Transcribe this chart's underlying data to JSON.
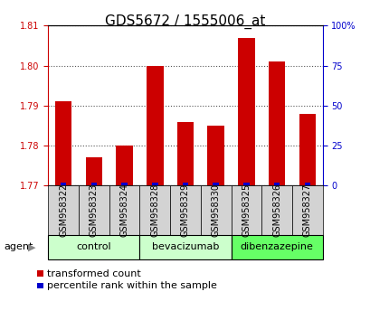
{
  "title": "GDS5672 / 1555006_at",
  "samples": [
    "GSM958322",
    "GSM958323",
    "GSM958324",
    "GSM958328",
    "GSM958329",
    "GSM958330",
    "GSM958325",
    "GSM958326",
    "GSM958327"
  ],
  "transformed_count": [
    1.791,
    1.777,
    1.78,
    1.8,
    1.786,
    1.785,
    1.807,
    1.801,
    1.788
  ],
  "percentile_rank": [
    2,
    2,
    2,
    2,
    2,
    2,
    2,
    2,
    2
  ],
  "groups": [
    {
      "label": "control",
      "start": 0,
      "end": 2,
      "color": "#ccffcc"
    },
    {
      "label": "bevacizumab",
      "start": 3,
      "end": 5,
      "color": "#ccffcc"
    },
    {
      "label": "dibenzazepine",
      "start": 6,
      "end": 8,
      "color": "#66ff66"
    }
  ],
  "ylim_left": [
    1.77,
    1.81
  ],
  "ylim_right": [
    0,
    100
  ],
  "right_ticks": [
    0,
    25,
    50,
    75,
    100
  ],
  "left_ticks": [
    1.77,
    1.78,
    1.79,
    1.8,
    1.81
  ],
  "bar_color_red": "#cc0000",
  "bar_color_blue": "#0000cc",
  "background_color": "#ffffff",
  "cell_color": "#d3d3d3",
  "title_fontsize": 11,
  "tick_fontsize": 7,
  "legend_fontsize": 8,
  "agent_label": "agent"
}
